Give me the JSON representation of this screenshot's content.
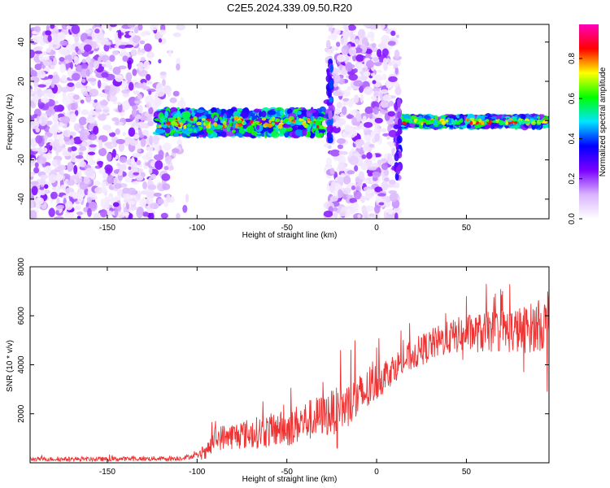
{
  "title": "C2E5.2024.339.09.50.R20",
  "chart_data": [
    {
      "type": "heatmap",
      "xlabel": "Height of straight line (km)",
      "ylabel": "Frequency (Hz)",
      "xlim": [
        -193,
        96
      ],
      "ylim": [
        -50,
        49
      ],
      "xticks": [
        -150,
        -100,
        -50,
        0,
        50
      ],
      "yticks": [
        -40,
        -20,
        0,
        20,
        40
      ],
      "colorbar": {
        "label": "Normalized spectral amplitude",
        "range": [
          0.0,
          0.97
        ],
        "ticks": [
          0.0,
          0.2,
          0.4,
          0.6,
          0.8
        ],
        "colors": [
          "#ffffff",
          "#d9b3ff",
          "#7a00ff",
          "#0000ff",
          "#00e5ff",
          "#00ff00",
          "#ffff00",
          "#ff0000",
          "#ff00bb"
        ]
      },
      "regions": [
        {
          "x": [
            -193,
            -105
          ],
          "freq": [
            -50,
            49
          ],
          "amplitude": "low",
          "kind": "noise"
        },
        {
          "x": [
            -122,
            -28
          ],
          "freq": [
            -10,
            8
          ],
          "amplitude": "high",
          "kind": "band"
        },
        {
          "x": [
            -28,
            12
          ],
          "freq": [
            -50,
            49
          ],
          "amplitude": "low",
          "kind": "noise"
        },
        {
          "x": [
            12,
            96
          ],
          "freq": [
            -4,
            3
          ],
          "amplitude": "high",
          "kind": "band"
        }
      ],
      "features": [
        {
          "x": -26,
          "freq_range": [
            -10,
            30
          ],
          "amplitude": 0.35
        },
        {
          "x": 12,
          "freq_range": [
            -30,
            10
          ],
          "amplitude": 0.3
        }
      ],
      "grid": false
    },
    {
      "type": "line",
      "xlabel": "Height of straight line (km)",
      "ylabel": "SNR (10 * v/v)",
      "xlim": [
        -193,
        96
      ],
      "ylim": [
        0,
        8000
      ],
      "xticks": [
        -150,
        -100,
        -50,
        0,
        50
      ],
      "yticks": [
        2000,
        4000,
        6000,
        8000
      ],
      "color": "#ee3333",
      "grid": false,
      "trend": {
        "x": [
          -193,
          -150,
          -110,
          -95,
          -90,
          -70,
          -50,
          -40,
          -30,
          -20,
          -10,
          0,
          10,
          20,
          30,
          40,
          50,
          60,
          70,
          80,
          90,
          96
        ],
        "y": [
          150,
          150,
          180,
          350,
          1000,
          1200,
          1400,
          1700,
          1900,
          2200,
          2600,
          3300,
          3900,
          4400,
          4800,
          5100,
          5300,
          5300,
          5400,
          5400,
          5600,
          5700
        ]
      },
      "noise_amplitude": {
        "x": [
          -193,
          -100,
          -90,
          -60,
          -30,
          -10,
          10,
          40,
          70,
          96
        ],
        "y": [
          80,
          100,
          500,
          700,
          900,
          1000,
          600,
          700,
          900,
          1100
        ]
      },
      "peaks": [
        {
          "x": -85,
          "y": 1500
        },
        {
          "x": -55,
          "y": 1900
        },
        {
          "x": -30,
          "y": 3300
        },
        {
          "x": -20,
          "y": 4600
        },
        {
          "x": -12,
          "y": 5000
        },
        {
          "x": 0,
          "y": 4700
        },
        {
          "x": 25,
          "y": 5100
        },
        {
          "x": 50,
          "y": 6800
        },
        {
          "x": 61,
          "y": 7300
        },
        {
          "x": 90,
          "y": 6500
        },
        {
          "x": 95,
          "y": 7900
        }
      ],
      "troughs": [
        {
          "x": -22,
          "y": 600
        },
        {
          "x": 48,
          "y": 4200
        },
        {
          "x": 82,
          "y": 3700
        },
        {
          "x": 95,
          "y": 2900
        }
      ]
    }
  ]
}
